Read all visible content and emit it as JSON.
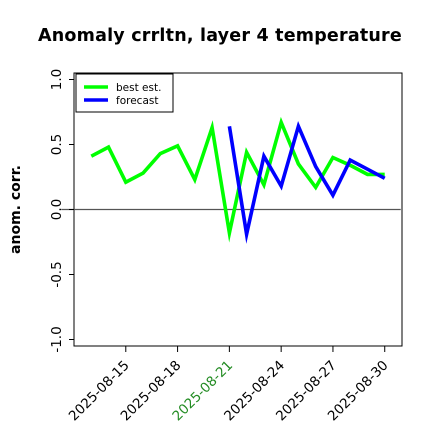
{
  "chart_data": {
    "type": "line",
    "title": "Anomaly crrltn, layer 4 temperature",
    "xlabel": "",
    "ylabel": "anom. corr.",
    "ylim": [
      -1.05,
      1.05
    ],
    "yticks": [
      -1.0,
      -0.5,
      0.0,
      0.5,
      1.0
    ],
    "ytick_labels": [
      "-1.0",
      "-0.5",
      "0.0",
      "0.5",
      "1.0"
    ],
    "xlim": [
      "2025-08-12",
      "2025-08-31"
    ],
    "xtick_labels": [
      "2025-08-15",
      "2025-08-18",
      "2025-08-21",
      "2025-08-24",
      "2025-08-27",
      "2025-08-30"
    ],
    "xtick_colors": [
      "#000000",
      "#000000",
      "#228B22",
      "#000000",
      "#000000",
      "#000000"
    ],
    "zero_line": true,
    "grid": false,
    "legend_position": "top-left",
    "x": [
      "2025-08-13",
      "2025-08-14",
      "2025-08-15",
      "2025-08-16",
      "2025-08-17",
      "2025-08-18",
      "2025-08-19",
      "2025-08-20",
      "2025-08-21",
      "2025-08-22",
      "2025-08-23",
      "2025-08-24",
      "2025-08-25",
      "2025-08-26",
      "2025-08-27",
      "2025-08-28",
      "2025-08-29",
      "2025-08-30"
    ],
    "series": [
      {
        "name": "best est.",
        "color": "#00ff00",
        "x": [
          "2025-08-13",
          "2025-08-14",
          "2025-08-15",
          "2025-08-16",
          "2025-08-17",
          "2025-08-18",
          "2025-08-19",
          "2025-08-20",
          "2025-08-21",
          "2025-08-22",
          "2025-08-23",
          "2025-08-24",
          "2025-08-25",
          "2025-08-26",
          "2025-08-27",
          "2025-08-28",
          "2025-08-29",
          "2025-08-30"
        ],
        "values": [
          0.41,
          0.48,
          0.21,
          0.28,
          0.43,
          0.49,
          0.23,
          0.63,
          -0.18,
          0.44,
          0.19,
          0.67,
          0.35,
          0.17,
          0.4,
          0.34,
          0.27,
          0.27
        ]
      },
      {
        "name": "forecast",
        "color": "#0000ff",
        "x": [
          "2025-08-21",
          "2025-08-22",
          "2025-08-23",
          "2025-08-24",
          "2025-08-25",
          "2025-08-26",
          "2025-08-27",
          "2025-08-28",
          "2025-08-29",
          "2025-08-30"
        ],
        "values": [
          0.64,
          -0.19,
          0.41,
          0.18,
          0.64,
          0.33,
          0.11,
          0.38,
          0.31,
          0.24
        ]
      }
    ]
  }
}
